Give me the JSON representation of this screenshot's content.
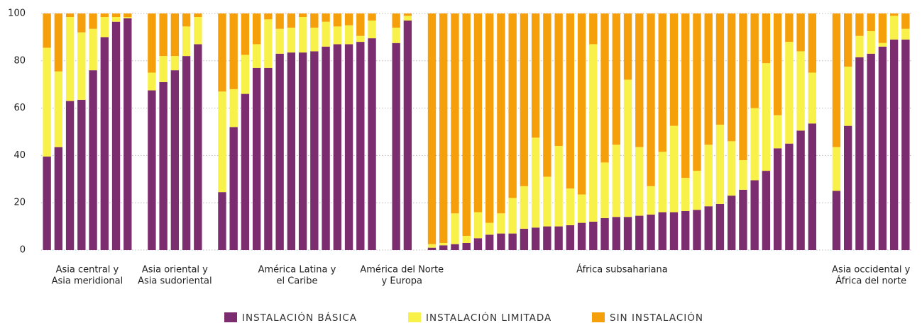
{
  "chart_data": {
    "type": "grouped-stacked-bar",
    "series": [
      {
        "name": "INSTALACIÓN BÁSICA",
        "color": "#7b2d70"
      },
      {
        "name": "INSTALACIÓN LIMITADA",
        "color": "#f8f14a"
      },
      {
        "name": "SIN INSTALACIÓN",
        "color": "#f59f0a"
      }
    ],
    "ylim": [
      0,
      100
    ],
    "yticks": [
      0,
      20,
      40,
      60,
      80,
      100
    ],
    "grid": true,
    "groups": [
      {
        "label": [
          "Asia central y",
          "Asia meridional"
        ],
        "values": [
          [
            39.5,
            46,
            14.5
          ],
          [
            43.5,
            32,
            24.5
          ],
          [
            63,
            35.5,
            1.5
          ],
          [
            63.5,
            28.5,
            8
          ],
          [
            76,
            17.5,
            6.5
          ],
          [
            90,
            8.5,
            1.5
          ],
          [
            96.5,
            2,
            1.5
          ],
          [
            98,
            0.5,
            1.5
          ]
        ]
      },
      {
        "label": [
          "Asia oriental y",
          "Asia sudoriental"
        ],
        "values": [
          [
            67.5,
            7.5,
            25
          ],
          [
            71,
            11,
            18
          ],
          [
            76,
            6,
            18
          ],
          [
            82,
            12.5,
            5.5
          ],
          [
            87,
            11.5,
            1.5
          ]
        ]
      },
      {
        "label": [
          "América Latina y",
          "el Caribe"
        ],
        "values": [
          [
            24.5,
            42.5,
            33
          ],
          [
            52,
            16,
            32
          ],
          [
            66,
            16.5,
            17.5
          ],
          [
            77,
            10,
            13
          ],
          [
            77,
            20.5,
            2.5
          ],
          [
            83,
            10.5,
            6.5
          ],
          [
            83.5,
            10.5,
            6
          ],
          [
            83.5,
            15,
            1.5
          ],
          [
            84,
            10,
            6
          ],
          [
            86,
            10.5,
            3.5
          ],
          [
            87,
            7.5,
            5.5
          ],
          [
            87,
            8,
            5
          ],
          [
            88,
            2.5,
            9.5
          ],
          [
            89.5,
            7.5,
            3
          ]
        ]
      },
      {
        "label": [
          "América del Norte",
          "y Europa"
        ],
        "values": [
          [
            87.5,
            6.5,
            6
          ],
          [
            97,
            2,
            1
          ]
        ]
      },
      {
        "label": [
          "África subsahariana"
        ],
        "values": [
          [
            1,
            1.5,
            97.5
          ],
          [
            2,
            1,
            97
          ],
          [
            2.5,
            13,
            84.5
          ],
          [
            3,
            3,
            94
          ],
          [
            5,
            11,
            84
          ],
          [
            6.5,
            5,
            88.5
          ],
          [
            7,
            8.5,
            84.5
          ],
          [
            7,
            15,
            78
          ],
          [
            9,
            18,
            73
          ],
          [
            9.5,
            38,
            52.5
          ],
          [
            10,
            21,
            69
          ],
          [
            10,
            34,
            56
          ],
          [
            10.5,
            15.5,
            74
          ],
          [
            11.5,
            12,
            76.5
          ],
          [
            12,
            75,
            13
          ],
          [
            13.5,
            23.5,
            63
          ],
          [
            14,
            30.5,
            55.5
          ],
          [
            14,
            58,
            28
          ],
          [
            14.5,
            29,
            56.5
          ],
          [
            15,
            12,
            73
          ],
          [
            16,
            25.5,
            58.5
          ],
          [
            16,
            36.5,
            47.5
          ],
          [
            16.5,
            14,
            69.5
          ],
          [
            17,
            16.5,
            66.5
          ],
          [
            18.5,
            26,
            55.5
          ],
          [
            19.5,
            33.5,
            47
          ],
          [
            23,
            23,
            54
          ],
          [
            25.5,
            12.5,
            62
          ],
          [
            29.5,
            30.5,
            40
          ],
          [
            33.5,
            45.5,
            21
          ],
          [
            43,
            14,
            43
          ],
          [
            45,
            43,
            12
          ],
          [
            50.5,
            33.5,
            16
          ],
          [
            53.5,
            21.5,
            25
          ]
        ]
      },
      {
        "label": [
          "Asia occidental y",
          "África del norte"
        ],
        "values": [
          [
            25,
            18.5,
            56.5
          ],
          [
            52.5,
            25,
            22.5
          ],
          [
            81.5,
            9,
            9.5
          ],
          [
            83,
            9.5,
            7.5
          ],
          [
            86,
            1.5,
            12.5
          ],
          [
            89,
            10,
            1
          ],
          [
            89,
            4.5,
            6.5
          ]
        ]
      }
    ]
  }
}
